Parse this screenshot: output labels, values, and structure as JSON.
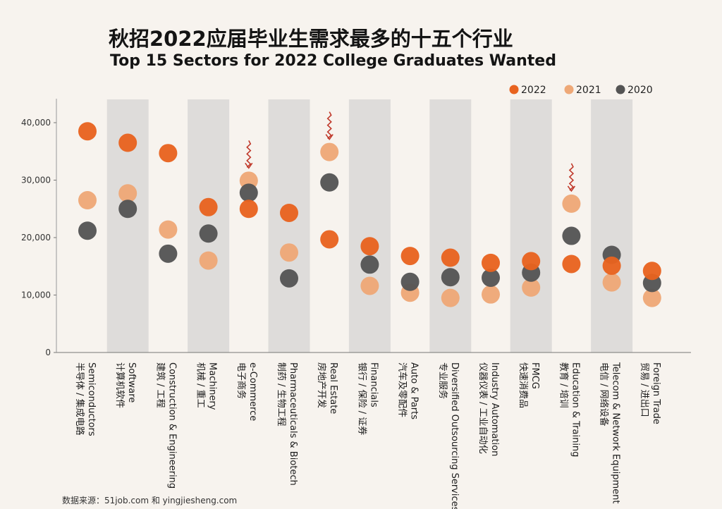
{
  "title_zh": "秋招2022应届毕业生需求最多的十五个行业",
  "title_en": "Top 15 Sectors for 2022 College Graduates Wanted",
  "source": "数据来源：51job.com 和 yingjiesheng.com",
  "colors": {
    "s2022": "#e8631f",
    "s2021": "#eea877",
    "s2020": "#545454",
    "band": "#dedcda",
    "arrow": "#c0392b"
  },
  "chart_data": {
    "type": "scatter",
    "ylim": [
      0,
      45000
    ],
    "yticks": [
      "0",
      "10,000",
      "20,000",
      "30,000",
      "40,000"
    ],
    "ytick_values": [
      0,
      10000,
      20000,
      30000,
      40000
    ],
    "legend_position": "top-right",
    "categories": [
      {
        "en": "Semiconductors",
        "zh": "半导体 / 集成电路"
      },
      {
        "en": "Software",
        "zh": "计算机软件"
      },
      {
        "en": "Construction & Engineering",
        "zh": "建筑 / 工程"
      },
      {
        "en": "Machinery",
        "zh": "机械 / 重工"
      },
      {
        "en": "e-Commerce",
        "zh": "电子商务"
      },
      {
        "en": "Pharmaceuticals & Biotech",
        "zh": "制药 / 生物工程"
      },
      {
        "en": "Real Estate",
        "zh": "房地产开发"
      },
      {
        "en": "Financials",
        "zh": "银行 / 保险 / 证券"
      },
      {
        "en": "Auto & Parts",
        "zh": "汽车及零配件"
      },
      {
        "en": "Diversified Outsourcing Services",
        "zh": "专业服务"
      },
      {
        "en": "Industry Automation",
        "zh": "仪器仪表 / 工业自动化"
      },
      {
        "en": "FMCG",
        "zh": "快速消费品"
      },
      {
        "en": "Education & Training",
        "zh": "教育 / 培训"
      },
      {
        "en": "Telecom & Network Equipment",
        "zh": "电信 / 网络设备"
      },
      {
        "en": "Foreign Trade",
        "zh": "贸易 / 进出口"
      }
    ],
    "series": [
      {
        "name": "2022",
        "values": [
          38500,
          36500,
          34700,
          25300,
          25000,
          24300,
          19700,
          18500,
          16800,
          16500,
          15600,
          15900,
          15400,
          15100,
          14200
        ]
      },
      {
        "name": "2021",
        "values": [
          26500,
          27700,
          21400,
          16000,
          29900,
          17400,
          34900,
          11600,
          10400,
          9500,
          10100,
          11300,
          25900,
          12200,
          9500
        ]
      },
      {
        "name": "2020",
        "values": [
          21200,
          25000,
          17200,
          20700,
          27800,
          12900,
          29600,
          15300,
          12300,
          13100,
          13000,
          13900,
          20300,
          17000,
          12100
        ]
      }
    ],
    "decline_arrows": [
      "e-Commerce",
      "Real Estate",
      "Education & Training"
    ]
  }
}
